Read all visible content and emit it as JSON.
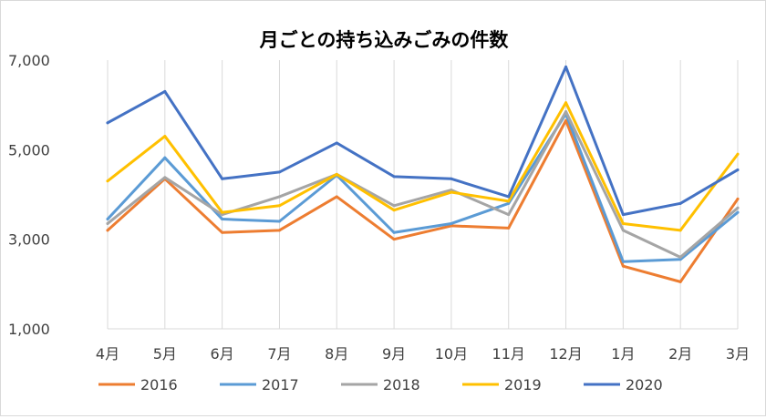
{
  "chart_data": {
    "type": "line",
    "title": "月ごとの持ち込みごみの件数",
    "xlabel": "",
    "ylabel": "",
    "categories": [
      "4月",
      "5月",
      "6月",
      "7月",
      "8月",
      "9月",
      "10月",
      "11月",
      "12月",
      "1月",
      "2月",
      "3月"
    ],
    "ylim": [
      1000,
      7000
    ],
    "yticks": [
      "1,000",
      "3,000",
      "5,000",
      "7,000"
    ],
    "ytick_values": [
      1000,
      3000,
      5000,
      7000
    ],
    "grid": "vertical",
    "legend": "bottom",
    "series": [
      {
        "name": "2016",
        "color": "#ed7d31",
        "values": [
          3200,
          4350,
          3150,
          3200,
          3950,
          3000,
          3300,
          3250,
          5650,
          2400,
          2050,
          3900
        ]
      },
      {
        "name": "2017",
        "color": "#5b9bd5",
        "values": [
          3450,
          4820,
          3450,
          3400,
          4430,
          3150,
          3350,
          3800,
          5800,
          2500,
          2550,
          3600
        ]
      },
      {
        "name": "2018",
        "color": "#a5a5a5",
        "values": [
          3350,
          4380,
          3550,
          3950,
          4450,
          3750,
          4100,
          3550,
          5850,
          3200,
          2600,
          3700
        ]
      },
      {
        "name": "2019",
        "color": "#ffc000",
        "values": [
          4300,
          5300,
          3600,
          3750,
          4450,
          3650,
          4050,
          3850,
          6050,
          3350,
          3200,
          4900
        ]
      },
      {
        "name": "2020",
        "color": "#4472c4",
        "values": [
          5600,
          6300,
          4350,
          4500,
          5150,
          4400,
          4350,
          3950,
          6850,
          3550,
          3800,
          4550
        ]
      }
    ]
  }
}
